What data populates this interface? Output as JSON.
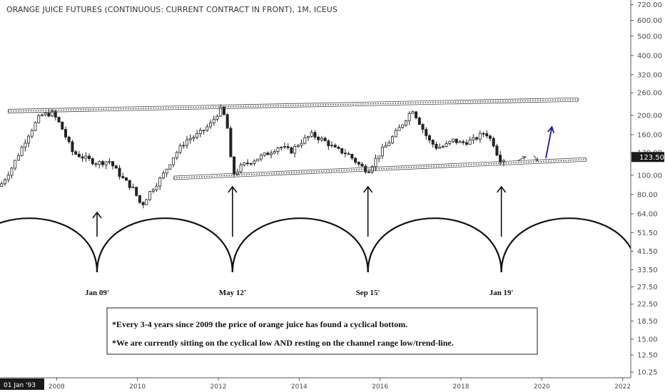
{
  "chart_data": {
    "type": "candlestick",
    "title": "ORANGE JUICE FUTURES (CONTINUOUS: CURRENT CONTRACT IN FRONT), 1M, ICEUS",
    "y_scale": "log",
    "y_ticks": [
      "720.00",
      "600.00",
      "500.00",
      "400.00",
      "320.00",
      "260.00",
      "200.00",
      "160.00",
      "130.00",
      "100.00",
      "80.00",
      "64.00",
      "51.50",
      "41.50",
      "33.50",
      "27.50",
      "22.50",
      "18.50",
      "15.00",
      "12.50",
      "10.25"
    ],
    "x_ticks": [
      "2008",
      "2010",
      "2012",
      "2014",
      "2016",
      "2018",
      "2020",
      "2022"
    ],
    "x_range": [
      2006.6,
      2022.2
    ],
    "y_range": [
      9.6,
      760
    ],
    "last_price": "123.50",
    "cursor_date": "01 Jan '93",
    "price_path": [
      [
        2006.6,
        88
      ],
      [
        2006.9,
        110
      ],
      [
        2007.3,
        160
      ],
      [
        2007.6,
        200
      ],
      [
        2007.9,
        205
      ],
      [
        2008.1,
        178
      ],
      [
        2008.4,
        130
      ],
      [
        2008.7,
        122
      ],
      [
        2009.0,
        115
      ],
      [
        2009.3,
        118
      ],
      [
        2009.6,
        98
      ],
      [
        2009.9,
        85
      ],
      [
        2010.1,
        70
      ],
      [
        2010.3,
        82
      ],
      [
        2010.6,
        98
      ],
      [
        2010.9,
        125
      ],
      [
        2011.2,
        150
      ],
      [
        2011.5,
        160
      ],
      [
        2011.8,
        180
      ],
      [
        2012.05,
        215
      ],
      [
        2012.2,
        190
      ],
      [
        2012.35,
        100
      ],
      [
        2012.6,
        112
      ],
      [
        2012.9,
        120
      ],
      [
        2013.2,
        128
      ],
      [
        2013.5,
        140
      ],
      [
        2013.8,
        132
      ],
      [
        2014.0,
        145
      ],
      [
        2014.3,
        160
      ],
      [
        2014.6,
        150
      ],
      [
        2014.9,
        135
      ],
      [
        2015.2,
        128
      ],
      [
        2015.5,
        112
      ],
      [
        2015.7,
        105
      ],
      [
        2016.0,
        130
      ],
      [
        2016.2,
        145
      ],
      [
        2016.5,
        175
      ],
      [
        2016.8,
        215
      ],
      [
        2017.0,
        180
      ],
      [
        2017.2,
        150
      ],
      [
        2017.4,
        138
      ],
      [
        2017.6,
        140
      ],
      [
        2017.8,
        150
      ],
      [
        2018.0,
        145
      ],
      [
        2018.3,
        150
      ],
      [
        2018.6,
        165
      ],
      [
        2018.8,
        145
      ],
      [
        2018.95,
        120
      ],
      [
        2019.1,
        121
      ]
    ],
    "trend_lines": [
      {
        "name": "channel-top",
        "from": [
          2006.8,
          210
        ],
        "to": [
          2020.9,
          240
        ]
      },
      {
        "name": "channel-bottom",
        "from": [
          2010.9,
          97
        ],
        "to": [
          2021.1,
          120
        ]
      }
    ],
    "cycle_lows": [
      {
        "label": "Jan 09'",
        "x": 2009.0
      },
      {
        "label": "May 12'",
        "x": 2012.35
      },
      {
        "label": "Sep 15'",
        "x": 2015.7
      },
      {
        "label": "Jan 19'",
        "x": 2019.0
      }
    ],
    "projection_arrows": [
      {
        "color": "#333333",
        "from": [
          2019.4,
          118
        ],
        "to": [
          2019.6,
          124
        ]
      },
      {
        "color": "#333333",
        "from": [
          2019.8,
          126
        ],
        "to": [
          2019.9,
          118
        ]
      },
      {
        "color": "#1a1a8c",
        "from": [
          2020.1,
          122
        ],
        "to": [
          2020.25,
          175
        ]
      }
    ],
    "annotations": [
      "*Every 3-4 years since 2009 the price of orange juice has found a cyclical bottom.",
      "*We are currently sitting on the cyclical low AND resting on the channel range low/trend-line."
    ]
  }
}
